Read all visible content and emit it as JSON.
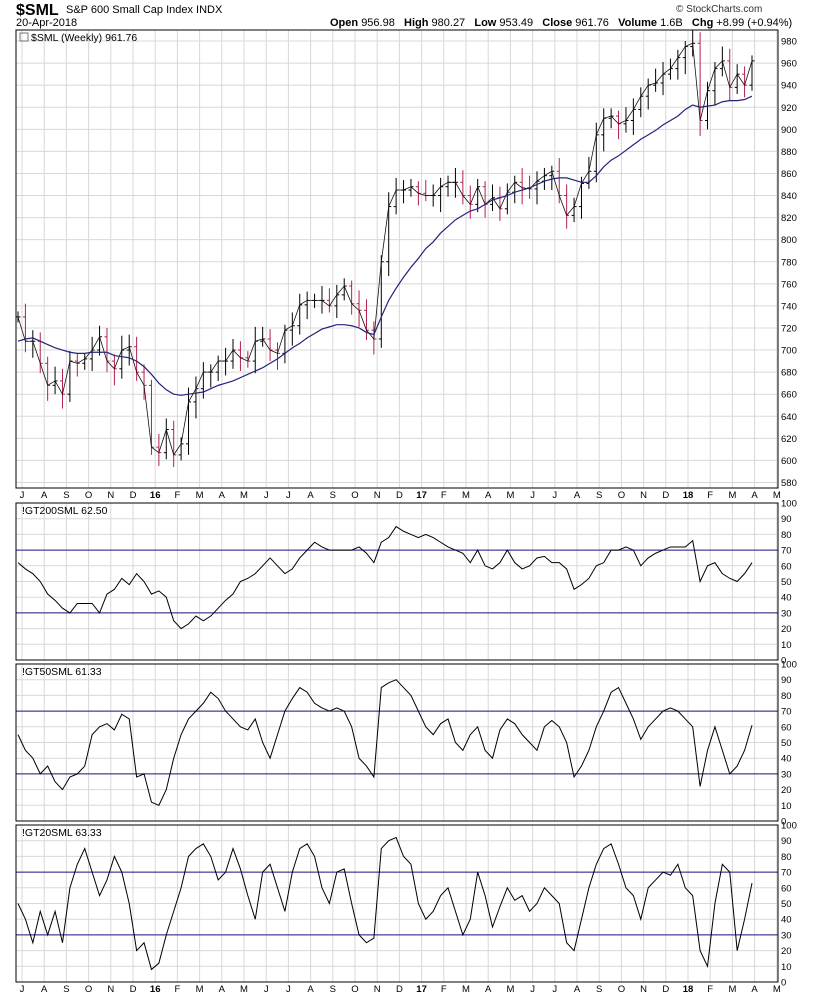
{
  "header": {
    "symbol": "$SML",
    "description": "S&P 600 Small Cap Index",
    "exchange": "INDX",
    "date": "20-Apr-2018",
    "open_label": "Open",
    "open": "956.98",
    "high_label": "High",
    "high": "980.27",
    "low_label": "Low",
    "low": "953.49",
    "close_label": "Close",
    "close": "961.76",
    "volume_label": "Volume",
    "volume": "1.6B",
    "chg_label": "Chg",
    "chg": "+8.99 (+0.94%)",
    "brand": "© StockCharts.com"
  },
  "colors": {
    "up": "#000000",
    "down": "#b3204a",
    "ma": "#23237a",
    "ref": "#1a1a80",
    "grid": "#d8d8d8"
  },
  "chart_data": [
    {
      "type": "ohlc",
      "title": "$SML (Weekly) 961.76",
      "x_labels": [
        "J",
        "A",
        "S",
        "O",
        "N",
        "D",
        "16",
        "F",
        "M",
        "A",
        "M",
        "J",
        "J",
        "A",
        "S",
        "O",
        "N",
        "D",
        "17",
        "F",
        "M",
        "A",
        "M",
        "J",
        "J",
        "A",
        "S",
        "O",
        "N",
        "D",
        "18",
        "F",
        "M",
        "A",
        "M"
      ],
      "ylim": [
        575,
        990
      ],
      "yticks": [
        580,
        600,
        620,
        640,
        660,
        680,
        700,
        720,
        740,
        760,
        780,
        800,
        820,
        840,
        860,
        880,
        900,
        920,
        940,
        960,
        980
      ],
      "grid": true,
      "series": [
        {
          "name": "close",
          "values": [
            730,
            708,
            708,
            688,
            668,
            672,
            660,
            690,
            688,
            692,
            700,
            712,
            690,
            683,
            700,
            703,
            680,
            668,
            612,
            607,
            628,
            605,
            615,
            653,
            665,
            680,
            680,
            690,
            690,
            700,
            693,
            690,
            708,
            710,
            700,
            697,
            718,
            722,
            741,
            745,
            745,
            745,
            740,
            750,
            758,
            742,
            736,
            718,
            710,
            780,
            830,
            845,
            845,
            848,
            842,
            840,
            840,
            848,
            852,
            852,
            840,
            832,
            848,
            832,
            838,
            828,
            843,
            852,
            847,
            846,
            853,
            858,
            862,
            840,
            822,
            830,
            851,
            862,
            895,
            910,
            912,
            905,
            908,
            918,
            930,
            940,
            942,
            950,
            955,
            965,
            975,
            978,
            908,
            935,
            955,
            962,
            938,
            950,
            940,
            962
          ]
        },
        {
          "name": "30-week moving average",
          "values": [
            708,
            710,
            711,
            708,
            705,
            702,
            700,
            698,
            697,
            697,
            698,
            698,
            698,
            695,
            694,
            693,
            690,
            685,
            678,
            670,
            664,
            660,
            659,
            660,
            661,
            662,
            665,
            668,
            670,
            672,
            675,
            678,
            681,
            684,
            688,
            692,
            697,
            702,
            706,
            711,
            715,
            719,
            721,
            723,
            723,
            722,
            720,
            716,
            714,
            730,
            745,
            756,
            766,
            775,
            783,
            792,
            798,
            806,
            812,
            818,
            822,
            826,
            828,
            832,
            836,
            838,
            840,
            843,
            845,
            847,
            850,
            853,
            855,
            856,
            856,
            854,
            852,
            852,
            858,
            866,
            872,
            876,
            881,
            886,
            891,
            895,
            899,
            904,
            908,
            912,
            918,
            922,
            920,
            921,
            922,
            925,
            926,
            926,
            927,
            930
          ]
        }
      ]
    },
    {
      "type": "line",
      "title": "!GT200SML 62.50",
      "ylim": [
        0,
        100
      ],
      "yticks": [
        0,
        10,
        20,
        30,
        40,
        50,
        60,
        70,
        80,
        90,
        100
      ],
      "reference_lines": [
        30,
        70
      ],
      "series": [
        {
          "name": "!GT200SML",
          "values": [
            62,
            58,
            55,
            50,
            42,
            38,
            33,
            30,
            36,
            36,
            36,
            30,
            42,
            45,
            52,
            48,
            55,
            50,
            42,
            44,
            40,
            25,
            20,
            23,
            28,
            25,
            28,
            33,
            38,
            42,
            50,
            52,
            55,
            60,
            65,
            60,
            55,
            58,
            65,
            70,
            75,
            72,
            70,
            70,
            70,
            70,
            72,
            68,
            62,
            75,
            78,
            85,
            82,
            80,
            78,
            80,
            78,
            75,
            72,
            70,
            68,
            62,
            70,
            60,
            58,
            62,
            70,
            62,
            58,
            60,
            65,
            66,
            62,
            62,
            58,
            45,
            48,
            52,
            60,
            62,
            70,
            70,
            72,
            70,
            60,
            65,
            68,
            70,
            72,
            72,
            72,
            76,
            50,
            60,
            62,
            55,
            52,
            50,
            55,
            62
          ]
        }
      ]
    },
    {
      "type": "line",
      "title": "!GT50SML 61.33",
      "ylim": [
        0,
        100
      ],
      "yticks": [
        0,
        10,
        20,
        30,
        40,
        50,
        60,
        70,
        80,
        90,
        100
      ],
      "reference_lines": [
        30,
        70
      ],
      "series": [
        {
          "name": "!GT50SML",
          "values": [
            55,
            45,
            40,
            30,
            35,
            25,
            20,
            28,
            30,
            35,
            55,
            60,
            62,
            58,
            68,
            65,
            28,
            30,
            12,
            10,
            20,
            40,
            55,
            65,
            70,
            75,
            82,
            78,
            70,
            65,
            60,
            58,
            65,
            50,
            40,
            55,
            70,
            78,
            85,
            82,
            75,
            72,
            70,
            72,
            70,
            60,
            40,
            35,
            28,
            85,
            88,
            90,
            85,
            80,
            70,
            60,
            55,
            62,
            65,
            50,
            45,
            55,
            60,
            45,
            40,
            58,
            65,
            62,
            55,
            50,
            45,
            60,
            64,
            60,
            50,
            28,
            35,
            45,
            60,
            70,
            82,
            85,
            75,
            65,
            52,
            60,
            65,
            70,
            72,
            70,
            65,
            60,
            22,
            45,
            60,
            45,
            30,
            35,
            45,
            61
          ]
        }
      ]
    },
    {
      "type": "line",
      "title": "!GT20SML 63.33",
      "ylim": [
        0,
        100
      ],
      "yticks": [
        0,
        10,
        20,
        30,
        40,
        50,
        60,
        70,
        80,
        90,
        100
      ],
      "reference_lines": [
        30,
        70
      ],
      "series": [
        {
          "name": "!GT20SML",
          "values": [
            50,
            40,
            25,
            45,
            30,
            45,
            25,
            60,
            75,
            85,
            70,
            55,
            65,
            80,
            70,
            50,
            20,
            25,
            8,
            12,
            30,
            45,
            60,
            80,
            85,
            88,
            80,
            65,
            70,
            85,
            72,
            55,
            40,
            70,
            75,
            60,
            45,
            70,
            85,
            88,
            80,
            60,
            50,
            70,
            72,
            50,
            30,
            25,
            28,
            85,
            90,
            92,
            80,
            75,
            50,
            40,
            45,
            55,
            60,
            45,
            30,
            40,
            70,
            55,
            35,
            48,
            60,
            52,
            55,
            45,
            50,
            60,
            55,
            50,
            25,
            20,
            40,
            60,
            75,
            85,
            88,
            75,
            60,
            55,
            40,
            60,
            65,
            70,
            68,
            75,
            60,
            55,
            20,
            10,
            50,
            75,
            70,
            20,
            40,
            63
          ]
        }
      ]
    }
  ]
}
